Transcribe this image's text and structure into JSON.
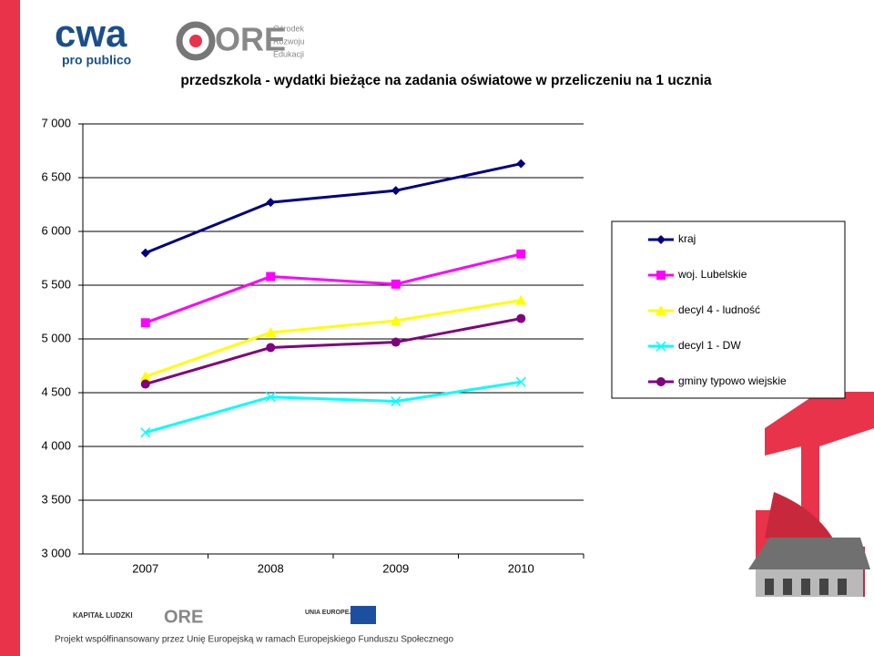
{
  "branding": {
    "logo_main": "cwa",
    "logo_sub": "pro publico",
    "ore": "ORE",
    "ore_lines": [
      "Ośrodek",
      "Rozwoju",
      "Edukacji"
    ],
    "footer_logos": [
      "KAPITAŁ LUDZKI",
      "ORE",
      "UNIA EUROPEJSKA"
    ],
    "footer": "Projekt współfinansowany przez Unię Europejską w ramach Europejskiego Funduszu Społecznego"
  },
  "chart_data": {
    "type": "line",
    "title": "przedszkola - wydatki bieżące na zadania oświatowe w przeliczeniu na 1 ucznia",
    "categories": [
      "2007",
      "2008",
      "2009",
      "2010"
    ],
    "series": [
      {
        "name": "kraj",
        "color": "#000080",
        "marker": "diamond",
        "values": [
          5800,
          6270,
          6380,
          6630
        ]
      },
      {
        "name": "woj. Lubelskie",
        "color": "#ff00ff",
        "marker": "square",
        "values": [
          5150,
          5580,
          5510,
          5790
        ]
      },
      {
        "name": "decyl 4 - ludność",
        "color": "#ffff00",
        "marker": "triangle",
        "values": [
          4650,
          5060,
          5170,
          5360
        ]
      },
      {
        "name": "decyl 1 - DW",
        "color": "#00ffff",
        "marker": "x",
        "values": [
          4130,
          4460,
          4420,
          4600
        ]
      },
      {
        "name": "gminy typowo wiejskie",
        "color": "#800080",
        "marker": "circle",
        "values": [
          4580,
          4920,
          4970,
          5190
        ]
      }
    ],
    "ylim": [
      3000,
      7000
    ],
    "yticks": [
      {
        "value": 3000,
        "label": "3 000"
      },
      {
        "value": 3500,
        "label": "3 500"
      },
      {
        "value": 4000,
        "label": "4 000"
      },
      {
        "value": 4500,
        "label": "4 500"
      },
      {
        "value": 5000,
        "label": "5 000"
      },
      {
        "value": 5500,
        "label": "5 500"
      },
      {
        "value": 6000,
        "label": "6 000"
      },
      {
        "value": 6500,
        "label": "6 500"
      },
      {
        "value": 7000,
        "label": "7 000"
      }
    ],
    "grid": true,
    "legend": "right"
  }
}
